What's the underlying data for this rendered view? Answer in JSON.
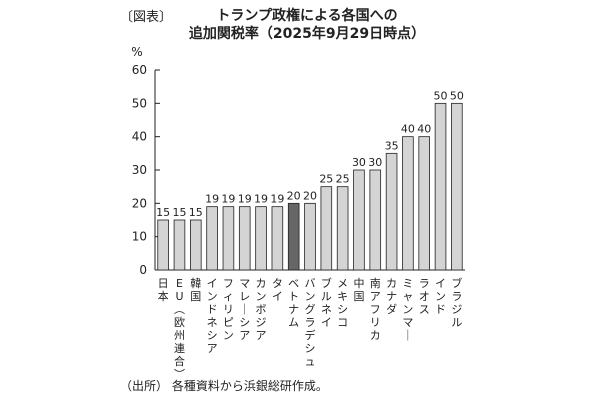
{
  "figure_label": "〔図表〕",
  "title_line1": "トランプ政権による各国への",
  "title_line2": "追加関税率（2025年9月29日時点）",
  "source": "（出所） 各種資料から浜銀総研作成。",
  "colors": {
    "bar": "#d4d4d4",
    "bar_highlight": "#666666",
    "stroke": "#222222"
  },
  "chart_data": {
    "type": "bar",
    "title": "トランプ政権による各国への追加関税率（2025年9月29日時点）",
    "ylabel": "%",
    "xlabel": "",
    "ylim": [
      0,
      60
    ],
    "yticks": [
      0,
      10,
      20,
      30,
      40,
      50,
      60
    ],
    "grid": false,
    "categories": [
      "日本",
      "EU（欧州連合）",
      "韓国",
      "インドネシア",
      "フィリピン",
      "マレーシア",
      "カンボジア",
      "タイ",
      "ベトナム",
      "バングラデシュ",
      "ブルネイ",
      "メキシコ",
      "中国",
      "南アフリカ",
      "カナダ",
      "ミャンマー",
      "ラオス",
      "インド",
      "ブラジル"
    ],
    "values": [
      15,
      15,
      15,
      19,
      19,
      19,
      19,
      19,
      20,
      20,
      25,
      25,
      30,
      30,
      35,
      40,
      40,
      50,
      50
    ],
    "highlight_category": "ベトナム"
  }
}
